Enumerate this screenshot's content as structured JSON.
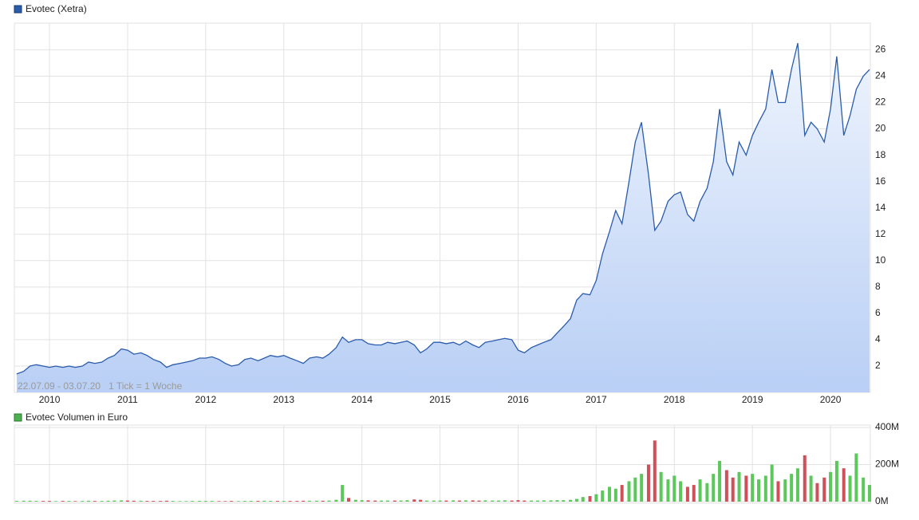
{
  "chart_data": [
    {
      "type": "area",
      "legend": "Evotec (Xetra)",
      "color": "#2a5cab",
      "fill": "#b9cff5",
      "annotation": "22.07.09 - 03.07.20   1 Tick = 1 Woche",
      "xlim": [
        2009.55,
        2020.51
      ],
      "xticks": [
        2010,
        2011,
        2012,
        2013,
        2014,
        2015,
        2016,
        2017,
        2018,
        2019,
        2020
      ],
      "ylim": [
        0,
        27.9
      ],
      "yticks": [
        2,
        4,
        6,
        8,
        10,
        12,
        14,
        16,
        18,
        20,
        22,
        24,
        26
      ],
      "grid": true,
      "x": [
        2009.58,
        2009.67,
        2009.75,
        2009.83,
        2009.92,
        2010.0,
        2010.08,
        2010.17,
        2010.25,
        2010.33,
        2010.42,
        2010.5,
        2010.58,
        2010.67,
        2010.75,
        2010.83,
        2010.92,
        2011.0,
        2011.08,
        2011.17,
        2011.25,
        2011.33,
        2011.42,
        2011.5,
        2011.58,
        2011.67,
        2011.75,
        2011.83,
        2011.92,
        2012.0,
        2012.08,
        2012.17,
        2012.25,
        2012.33,
        2012.42,
        2012.5,
        2012.58,
        2012.67,
        2012.75,
        2012.83,
        2012.92,
        2013.0,
        2013.08,
        2013.17,
        2013.25,
        2013.33,
        2013.42,
        2013.5,
        2013.58,
        2013.67,
        2013.75,
        2013.83,
        2013.92,
        2014.0,
        2014.08,
        2014.17,
        2014.25,
        2014.33,
        2014.42,
        2014.5,
        2014.58,
        2014.67,
        2014.75,
        2014.83,
        2014.92,
        2015.0,
        2015.08,
        2015.17,
        2015.25,
        2015.33,
        2015.42,
        2015.5,
        2015.58,
        2015.67,
        2015.75,
        2015.83,
        2015.92,
        2016.0,
        2016.08,
        2016.17,
        2016.25,
        2016.33,
        2016.42,
        2016.5,
        2016.58,
        2016.67,
        2016.75,
        2016.83,
        2016.92,
        2017.0,
        2017.08,
        2017.17,
        2017.25,
        2017.33,
        2017.42,
        2017.5,
        2017.58,
        2017.67,
        2017.75,
        2017.83,
        2017.92,
        2018.0,
        2018.08,
        2018.17,
        2018.25,
        2018.33,
        2018.42,
        2018.5,
        2018.58,
        2018.67,
        2018.75,
        2018.83,
        2018.92,
        2019.0,
        2019.08,
        2019.17,
        2019.25,
        2019.33,
        2019.42,
        2019.5,
        2019.58,
        2019.67,
        2019.75,
        2019.83,
        2019.92,
        2020.0,
        2020.08,
        2020.17,
        2020.25,
        2020.33,
        2020.42,
        2020.5
      ],
      "values": [
        1.4,
        1.6,
        2.0,
        2.1,
        2.0,
        1.9,
        2.0,
        1.9,
        2.0,
        1.9,
        2.0,
        2.3,
        2.2,
        2.3,
        2.6,
        2.8,
        3.3,
        3.2,
        2.9,
        3.0,
        2.8,
        2.5,
        2.3,
        1.9,
        2.1,
        2.2,
        2.3,
        2.4,
        2.6,
        2.6,
        2.7,
        2.5,
        2.2,
        2.0,
        2.1,
        2.5,
        2.6,
        2.4,
        2.6,
        2.8,
        2.7,
        2.8,
        2.6,
        2.4,
        2.2,
        2.6,
        2.7,
        2.6,
        2.9,
        3.4,
        4.2,
        3.8,
        4.0,
        4.0,
        3.7,
        3.6,
        3.6,
        3.8,
        3.7,
        3.8,
        3.9,
        3.6,
        3.0,
        3.3,
        3.8,
        3.8,
        3.7,
        3.8,
        3.6,
        3.9,
        3.6,
        3.4,
        3.8,
        3.9,
        4.0,
        4.1,
        4.0,
        3.2,
        3.0,
        3.4,
        3.6,
        3.8,
        4.0,
        4.5,
        5.0,
        5.6,
        7.0,
        7.5,
        7.4,
        8.5,
        10.5,
        12.2,
        13.8,
        12.8,
        16.0,
        19.0,
        20.5,
        16.5,
        12.3,
        13.0,
        14.5,
        15.0,
        15.2,
        13.5,
        13.0,
        14.5,
        15.5,
        17.5,
        21.5,
        17.5,
        16.5,
        19.0,
        18.0,
        19.5,
        20.5,
        21.5,
        24.5,
        22.0,
        22.0,
        24.5,
        26.5,
        19.5,
        20.5,
        20.0,
        19.0,
        21.5,
        25.5,
        19.5,
        21.0,
        23.0,
        24.0,
        24.5
      ]
    },
    {
      "type": "volume",
      "legend": "Evotec Volumen in Euro",
      "color": "#4caf50",
      "up_color": "#5cc85c",
      "down_color": "#d0505a",
      "xlim": [
        2009.55,
        2020.51
      ],
      "xticks": [
        2010,
        2011,
        2012,
        2013,
        2014,
        2015,
        2016,
        2017,
        2018,
        2019,
        2020
      ],
      "ylim": [
        0,
        400000000.0
      ],
      "yticks": [
        {
          "value": 0,
          "label": "0M"
        },
        {
          "value": 200000000.0,
          "label": "200M"
        },
        {
          "value": 400000000.0,
          "label": "400M"
        }
      ],
      "grid": true,
      "x": [
        2009.58,
        2009.67,
        2009.75,
        2009.83,
        2009.92,
        2010.0,
        2010.08,
        2010.17,
        2010.25,
        2010.33,
        2010.42,
        2010.5,
        2010.58,
        2010.67,
        2010.75,
        2010.83,
        2010.92,
        2011.0,
        2011.08,
        2011.17,
        2011.25,
        2011.33,
        2011.42,
        2011.5,
        2011.58,
        2011.67,
        2011.75,
        2011.83,
        2011.92,
        2012.0,
        2012.08,
        2012.17,
        2012.25,
        2012.33,
        2012.42,
        2012.5,
        2012.58,
        2012.67,
        2012.75,
        2012.83,
        2012.92,
        2013.0,
        2013.08,
        2013.17,
        2013.25,
        2013.33,
        2013.42,
        2013.5,
        2013.58,
        2013.67,
        2013.75,
        2013.83,
        2013.92,
        2014.0,
        2014.08,
        2014.17,
        2014.25,
        2014.33,
        2014.42,
        2014.5,
        2014.58,
        2014.67,
        2014.75,
        2014.83,
        2014.92,
        2015.0,
        2015.08,
        2015.17,
        2015.25,
        2015.33,
        2015.42,
        2015.5,
        2015.58,
        2015.67,
        2015.75,
        2015.83,
        2015.92,
        2016.0,
        2016.08,
        2016.17,
        2016.25,
        2016.33,
        2016.42,
        2016.5,
        2016.58,
        2016.67,
        2016.75,
        2016.83,
        2016.92,
        2017.0,
        2017.08,
        2017.17,
        2017.25,
        2017.33,
        2017.42,
        2017.5,
        2017.58,
        2017.67,
        2017.75,
        2017.83,
        2017.92,
        2018.0,
        2018.08,
        2018.17,
        2018.25,
        2018.33,
        2018.42,
        2018.5,
        2018.58,
        2018.67,
        2018.75,
        2018.83,
        2018.92,
        2019.0,
        2019.08,
        2019.17,
        2019.25,
        2019.33,
        2019.42,
        2019.5,
        2019.58,
        2019.67,
        2019.75,
        2019.83,
        2019.92,
        2020.0,
        2020.08,
        2020.17,
        2020.25,
        2020.33,
        2020.42,
        2020.5
      ],
      "values": [
        4000000.0,
        5000000.0,
        5000000.0,
        4000000.0,
        4000000.0,
        4000000.0,
        3000000.0,
        4000000.0,
        4000000.0,
        3000000.0,
        4000000.0,
        5000000.0,
        4000000.0,
        4000000.0,
        5000000.0,
        6000000.0,
        7000000.0,
        6000000.0,
        5000000.0,
        5000000.0,
        4000000.0,
        4000000.0,
        4000000.0,
        5000000.0,
        4000000.0,
        3000000.0,
        3000000.0,
        4000000.0,
        4000000.0,
        4000000.0,
        4000000.0,
        3000000.0,
        3000000.0,
        4000000.0,
        3000000.0,
        4000000.0,
        4000000.0,
        4000000.0,
        5000000.0,
        4000000.0,
        4000000.0,
        4000000.0,
        4000000.0,
        4000000.0,
        5000000.0,
        5000000.0,
        5000000.0,
        5000000.0,
        6000000.0,
        10000000.0,
        90000000.0,
        20000000.0,
        10000000.0,
        8000000.0,
        7000000.0,
        6000000.0,
        6000000.0,
        6000000.0,
        6000000.0,
        6000000.0,
        8000000.0,
        12000000.0,
        10000000.0,
        6000000.0,
        6000000.0,
        6000000.0,
        6000000.0,
        7000000.0,
        6000000.0,
        7000000.0,
        7000000.0,
        6000000.0,
        7000000.0,
        6000000.0,
        6000000.0,
        7000000.0,
        6000000.0,
        8000000.0,
        6000000.0,
        6000000.0,
        6000000.0,
        7000000.0,
        7000000.0,
        8000000.0,
        8000000.0,
        10000000.0,
        15000000.0,
        25000000.0,
        30000000.0,
        40000000.0,
        60000000.0,
        80000000.0,
        70000000.0,
        90000000.0,
        110000000.0,
        130000000.0,
        150000000.0,
        200000000.0,
        330000000.0,
        160000000.0,
        120000000.0,
        140000000.0,
        110000000.0,
        80000000.0,
        90000000.0,
        120000000.0,
        100000000.0,
        150000000.0,
        220000000.0,
        170000000.0,
        130000000.0,
        160000000.0,
        140000000.0,
        150000000.0,
        120000000.0,
        140000000.0,
        200000000.0,
        110000000.0,
        120000000.0,
        150000000.0,
        180000000.0,
        250000000.0,
        140000000.0,
        100000000.0,
        130000000.0,
        160000000.0,
        220000000.0,
        180000000.0,
        140000000.0,
        260000000.0,
        130000000.0,
        90000000.0
      ]
    }
  ]
}
